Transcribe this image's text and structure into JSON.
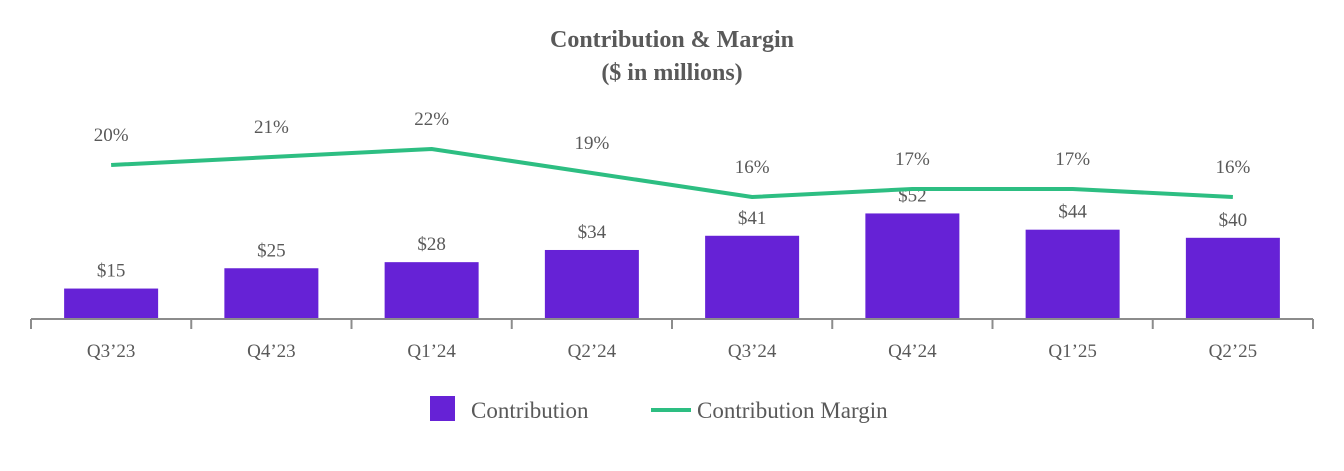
{
  "chart_data": {
    "type": "bar",
    "title": "Contribution & Margin",
    "subtitle": "($ in millions)",
    "categories": [
      "Q3’23",
      "Q4’23",
      "Q1’24",
      "Q2’24",
      "Q3’24",
      "Q4’24",
      "Q1’25",
      "Q2’25"
    ],
    "series": [
      {
        "name": "Contribution",
        "type": "bar",
        "color": "#6622D6",
        "values": [
          15,
          25,
          28,
          34,
          41,
          52,
          44,
          40
        ],
        "labels": [
          "$15",
          "$25",
          "$28",
          "$34",
          "$41",
          "$52",
          "$44",
          "$40"
        ]
      },
      {
        "name": "Contribution Margin",
        "type": "line",
        "color": "#2DBE82",
        "values": [
          20,
          21,
          22,
          19,
          16,
          17,
          17,
          16
        ],
        "labels": [
          "20%",
          "21%",
          "22%",
          "19%",
          "16%",
          "17%",
          "17%",
          "16%"
        ]
      }
    ],
    "grid": false,
    "legend": "bottom"
  }
}
